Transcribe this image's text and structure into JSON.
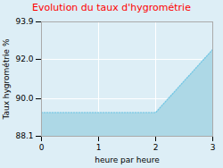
{
  "chart_data": {
    "type": "area",
    "title": "Evolution du taux d'hygrométrie",
    "xlabel": "heure par heure",
    "ylabel": "Taux hygrométrie %",
    "x": [
      0,
      2,
      3
    ],
    "values": [
      89.3,
      89.3,
      92.5
    ],
    "xlim": [
      0,
      3
    ],
    "ylim": [
      88.1,
      93.9
    ],
    "xticks": [
      0,
      1,
      2,
      3
    ],
    "yticks": [
      88.1,
      {
        "value": 90.0,
        "label": "90.0"
      },
      {
        "value": 92.0,
        "label": "92.0"
      },
      93.9
    ],
    "color": "#add8e6",
    "line_style": "dotted",
    "grid": true
  }
}
